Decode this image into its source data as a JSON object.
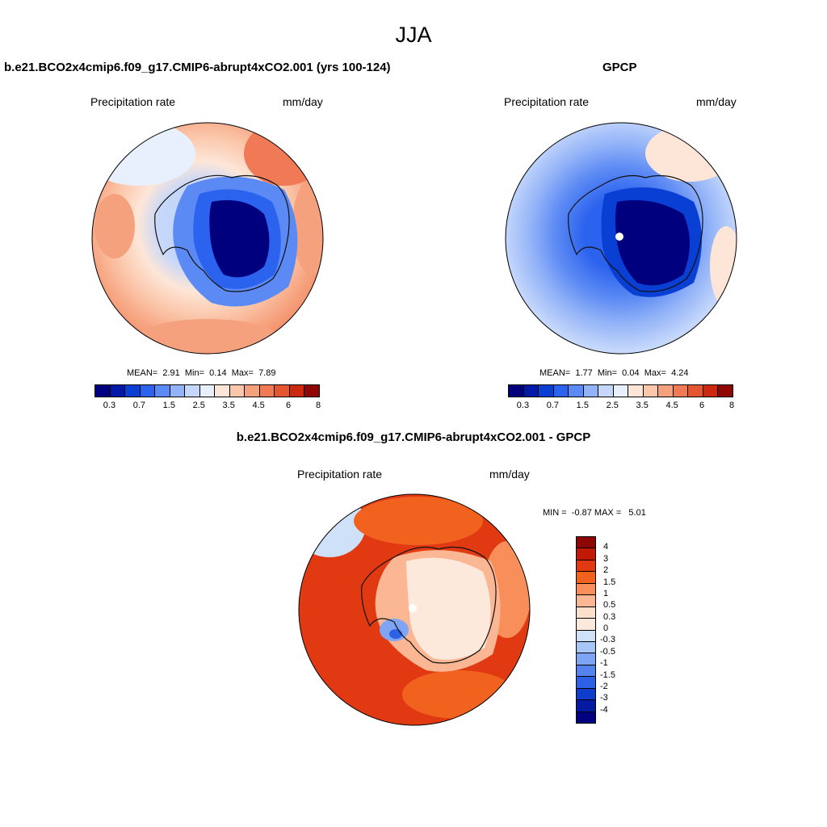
{
  "title": "JJA",
  "units_label": "mm/day",
  "panels": [
    {
      "title": "b.e21.BCO2x4cmip6.f09_g17.CMIP6-abrupt4xCO2.001 (yrs 100-124)",
      "variable": "Precipitation rate",
      "units": "mm/day",
      "mean": "2.91",
      "min": "0.14",
      "max": "7.89"
    },
    {
      "title": "GPCP",
      "variable": "Precipitation rate",
      "units": "mm/day",
      "mean": "1.77",
      "min": "0.04",
      "max": "4.24"
    },
    {
      "title": "b.e21.BCO2x4cmip6.f09_g17.CMIP6-abrupt4xCO2.001 - GPCP",
      "variable": "Precipitation rate",
      "units": "mm/day",
      "min": "-0.87",
      "max": "5.01"
    }
  ],
  "labels": {
    "mean": "MEAN=",
    "min": "Min=",
    "max": "Max=",
    "diff_min": "MIN =",
    "diff_max": "MAX ="
  },
  "seq_colors": [
    "#00007f",
    "#0019a6",
    "#0a3fd4",
    "#2b62ee",
    "#5c8af4",
    "#93b3f8",
    "#c4d7fb",
    "#e8f0fd",
    "#fde6d7",
    "#fbc7ab",
    "#f6a17d",
    "#ef7a55",
    "#e45531",
    "#cc2a10",
    "#8f0705"
  ],
  "seq_ticks": [
    "0.3",
    "0.7",
    "1.5",
    "2.5",
    "3.5",
    "4.5",
    "6",
    "8"
  ],
  "diff_colors": [
    "#8f0705",
    "#c11905",
    "#e13a12",
    "#f2621f",
    "#f88e5a",
    "#fbb793",
    "#fce0cc",
    "#fde9dc",
    "#cfe0f9",
    "#a8c5f7",
    "#7ea4f3",
    "#5583ee",
    "#2c61e6",
    "#0e3dce",
    "#041aa3",
    "#000080"
  ],
  "diff_ticks": [
    "4",
    "3",
    "2",
    "1.5",
    "1",
    "0.5",
    "0.3",
    "0",
    "-0.3",
    "-0.5",
    "-1",
    "-1.5",
    "-2",
    "-3",
    "-4"
  ],
  "chart_data": [
    {
      "type": "heatmap",
      "title": "b.e21.BCO2x4cmip6.f09_g17.CMIP6-abrupt4xCO2.001 (yrs 100-124)",
      "field": "Precipitation rate",
      "units": "mm/day",
      "season": "JJA",
      "colorbar_levels": [
        0.3,
        0.7,
        1.5,
        2.5,
        3.5,
        4.5,
        6,
        8
      ],
      "stats": {
        "mean": 2.91,
        "min": 0.14,
        "max": 7.89
      }
    },
    {
      "type": "heatmap",
      "title": "GPCP",
      "field": "Precipitation rate",
      "units": "mm/day",
      "season": "JJA",
      "colorbar_levels": [
        0.3,
        0.7,
        1.5,
        2.5,
        3.5,
        4.5,
        6,
        8
      ],
      "stats": {
        "mean": 1.77,
        "min": 0.04,
        "max": 4.24
      }
    },
    {
      "type": "heatmap",
      "title": "b.e21.BCO2x4cmip6.f09_g17.CMIP6-abrupt4xCO2.001 - GPCP",
      "field": "Precipitation rate",
      "units": "mm/day",
      "season": "JJA",
      "colorbar_levels": [
        -4,
        -3,
        -2,
        -1.5,
        -1,
        -0.5,
        -0.3,
        0,
        0.3,
        0.5,
        1,
        1.5,
        2,
        3,
        4
      ],
      "stats": {
        "min": -0.87,
        "max": 5.01
      }
    }
  ]
}
